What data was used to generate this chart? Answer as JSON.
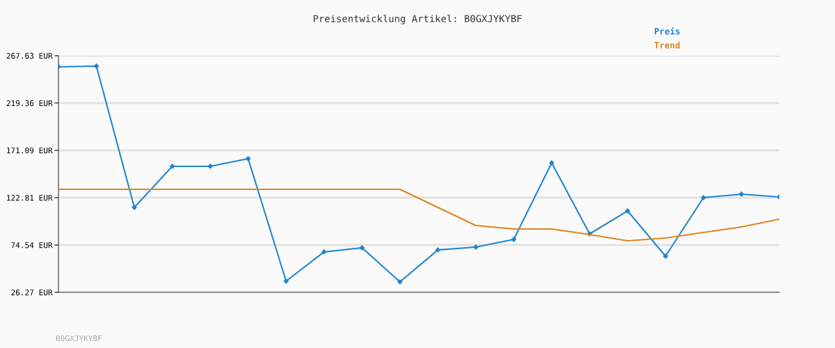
{
  "chart_data": {
    "type": "line",
    "title": "Preisentwicklung Artikel: B0GXJYKYBF",
    "categories": [
      null,
      null,
      null,
      null,
      null,
      null,
      null,
      null,
      null,
      null,
      null,
      null,
      null,
      null,
      null,
      null,
      null,
      null,
      null,
      null
    ],
    "series": [
      {
        "name": "Preis",
        "color": "#1f86cf",
        "marker": "diamond",
        "values": [
          256.3,
          257.0,
          112.9,
          154.8,
          154.8,
          162.6,
          37.6,
          67.5,
          71.7,
          36.9,
          69.5,
          72.4,
          80.2,
          158.3,
          85.9,
          109.3,
          63.2,
          122.8,
          126.4,
          123.5
        ]
      },
      {
        "name": "Trend",
        "color": "#e0841e",
        "marker": "none",
        "values": [
          131.3,
          131.3,
          131.3,
          131.3,
          131.3,
          131.3,
          131.3,
          131.3,
          131.3,
          131.3,
          112.9,
          94.4,
          90.9,
          90.9,
          85.2,
          78.8,
          81.6,
          87.3,
          93.0,
          100.8
        ]
      }
    ],
    "ylim": [
      26.27,
      267.63
    ],
    "yticks": [
      {
        "value": 26.27,
        "label": "26.27 EUR"
      },
      {
        "value": 74.54,
        "label": "74.54 EUR"
      },
      {
        "value": 122.81,
        "label": "122.81 EUR"
      },
      {
        "value": 171.09,
        "label": "171.09 EUR"
      },
      {
        "value": 219.36,
        "label": "219.36 EUR"
      },
      {
        "value": 267.63,
        "label": "267.63 EUR"
      }
    ],
    "grid": "y",
    "legend": "top right",
    "tick_labels": "y",
    "annotations": [
      "B0GXJYKYBF"
    ]
  }
}
